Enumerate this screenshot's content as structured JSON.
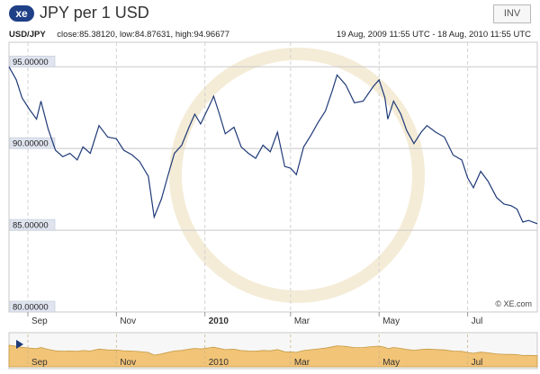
{
  "header": {
    "logo_text": "xe",
    "title": "JPY per 1 USD",
    "inv_label": "INV"
  },
  "info": {
    "pair": "USD/JPY",
    "close": "close:85.38120,",
    "low": "low:84.87631,",
    "high": "high:94.96677",
    "range": "19 Aug, 2009 11:55 UTC - 18 Aug, 2010 11:55 UTC"
  },
  "watermark": "© XE.com",
  "chart_data": {
    "type": "line",
    "title": "JPY per 1 USD",
    "x_start": "2009-08-19",
    "x_end": "2010-08-18",
    "ylim": [
      80,
      96.5
    ],
    "y_ticks": [
      "95.00000",
      "90.00000",
      "85.00000",
      "80.00000"
    ],
    "y_tick_values": [
      95,
      90,
      85,
      80
    ],
    "x_tick_labels": [
      "Sep",
      "Nov",
      "2010",
      "Mar",
      "May",
      "Jul"
    ],
    "x_tick_dates": [
      "2009-09-01",
      "2009-11-01",
      "2010-01-01",
      "2010-03-01",
      "2010-05-01",
      "2010-07-01"
    ],
    "grid": true,
    "series": [
      {
        "color": "#1f3a78",
        "dates": [
          "2009-08-19",
          "2009-08-24",
          "2009-08-28",
          "2009-09-02",
          "2009-09-07",
          "2009-09-10",
          "2009-09-15",
          "2009-09-20",
          "2009-09-25",
          "2009-09-30",
          "2009-10-05",
          "2009-10-09",
          "2009-10-14",
          "2009-10-20",
          "2009-10-26",
          "2009-11-01",
          "2009-11-06",
          "2009-11-12",
          "2009-11-17",
          "2009-11-23",
          "2009-11-27",
          "2009-12-02",
          "2009-12-07",
          "2009-12-11",
          "2009-12-16",
          "2009-12-21",
          "2009-12-25",
          "2009-12-29",
          "2010-01-04",
          "2010-01-07",
          "2010-01-11",
          "2010-01-15",
          "2010-01-21",
          "2010-01-26",
          "2010-01-31",
          "2010-02-05",
          "2010-02-10",
          "2010-02-15",
          "2010-02-20",
          "2010-02-25",
          "2010-03-01",
          "2010-03-05",
          "2010-03-10",
          "2010-03-15",
          "2010-03-20",
          "2010-03-25",
          "2010-03-30",
          "2010-04-02",
          "2010-04-08",
          "2010-04-14",
          "2010-04-20",
          "2010-04-27",
          "2010-05-01",
          "2010-05-05",
          "2010-05-07",
          "2010-05-11",
          "2010-05-16",
          "2010-05-20",
          "2010-05-25",
          "2010-05-30",
          "2010-06-03",
          "2010-06-09",
          "2010-06-15",
          "2010-06-21",
          "2010-06-27",
          "2010-07-01",
          "2010-07-05",
          "2010-07-10",
          "2010-07-15",
          "2010-07-21",
          "2010-07-26",
          "2010-07-31",
          "2010-08-04",
          "2010-08-08",
          "2010-08-12",
          "2010-08-18"
        ],
        "values": [
          95.0,
          94.2,
          93.1,
          92.4,
          91.8,
          92.9,
          91.2,
          89.9,
          89.5,
          89.7,
          89.3,
          90.1,
          89.7,
          91.4,
          90.7,
          90.6,
          89.9,
          89.6,
          89.2,
          88.3,
          85.8,
          86.9,
          88.5,
          89.7,
          90.2,
          91.3,
          92.1,
          91.5,
          92.6,
          93.2,
          92.1,
          90.9,
          91.3,
          90.1,
          89.7,
          89.4,
          90.2,
          89.8,
          91.0,
          88.9,
          88.8,
          88.4,
          90.1,
          90.8,
          91.6,
          92.3,
          93.6,
          94.5,
          93.9,
          92.8,
          92.9,
          93.8,
          94.2,
          93.1,
          91.8,
          92.9,
          92.1,
          91.1,
          90.3,
          91.0,
          91.4,
          91.0,
          90.7,
          89.6,
          89.3,
          88.2,
          87.6,
          88.6,
          88.0,
          87.0,
          86.6,
          86.5,
          86.3,
          85.5,
          85.6,
          85.4
        ]
      }
    ]
  },
  "navigator": {
    "x_tick_labels": [
      "Sep",
      "Nov",
      "2010",
      "Mar",
      "May",
      "Jul"
    ]
  }
}
